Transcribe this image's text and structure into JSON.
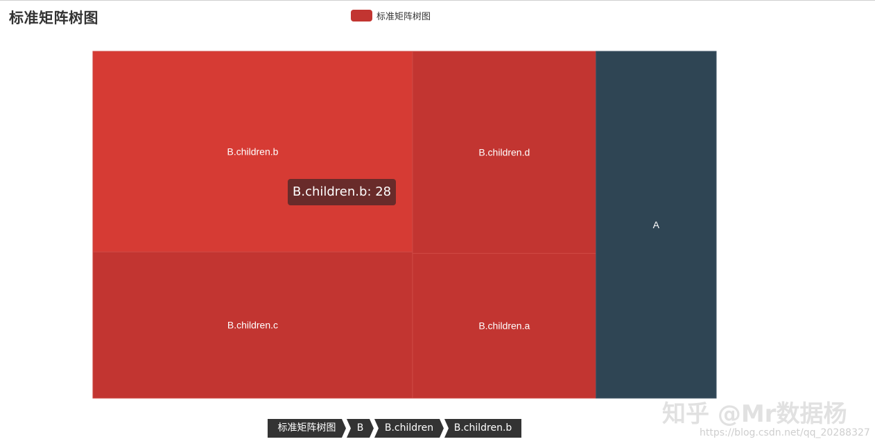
{
  "chart_data": {
    "type": "treemap",
    "title": "标准矩阵树图",
    "legend": {
      "label": "标准矩阵树图",
      "position": "top-center"
    },
    "colors": {
      "B": "#c23531",
      "A": "#2f4554",
      "hover": "#d63b34"
    },
    "children": [
      {
        "name": "B",
        "children": [
          {
            "name": "B.children",
            "children": [
              {
                "name": "B.children.b",
                "value": 28
              },
              {
                "name": "B.children.c",
                "value": 20.4
              },
              {
                "name": "B.children.d",
                "value": 16.2
              },
              {
                "name": "B.children.a",
                "value": 11.6
              }
            ]
          }
        ]
      },
      {
        "name": "A",
        "value": 18.2
      }
    ],
    "hovered": "B.children.b",
    "tooltip": "B.children.b: 28"
  },
  "breadcrumb": [
    "标准矩阵树图",
    "B",
    "B.children",
    "B.children.b"
  ],
  "watermark": {
    "text": "知乎 @Mr数据杨",
    "url": "https://blog.csdn.net/qq_20288327"
  }
}
